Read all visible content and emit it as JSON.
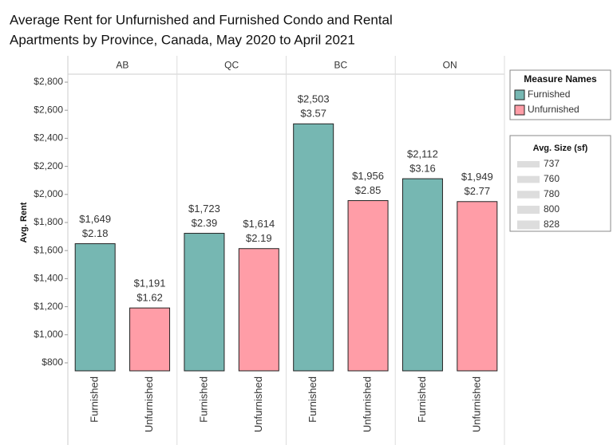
{
  "chart_data": {
    "type": "bar",
    "title": "Average Rent for Unfurnished and Furnished Condo and Rental",
    "subtitle": "Apartments by Province, Canada, May 2020 to April 2021",
    "y_label": "Avg. Rent",
    "categories": [
      "AB",
      "QC",
      "BC",
      "ON"
    ],
    "series": [
      {
        "name": "Furnished",
        "color": "#76b7b2",
        "values": [
          1649,
          1723,
          2503,
          2112
        ],
        "value_labels": [
          "$1,649",
          "$1,723",
          "$2,503",
          "$2,112"
        ],
        "per_sf_values": [
          2.18,
          2.39,
          3.57,
          3.16
        ],
        "per_sf_labels": [
          "$2.18",
          "$2.39",
          "$3.57",
          "$3.16"
        ]
      },
      {
        "name": "Unfurnished",
        "color": "#ff9da7",
        "values": [
          1191,
          1614,
          1956,
          1949
        ],
        "value_labels": [
          "$1,191",
          "$1,614",
          "$1,956",
          "$1,949"
        ],
        "per_sf_values": [
          1.62,
          2.19,
          2.85,
          2.77
        ],
        "per_sf_labels": [
          "$1.62",
          "$2.19",
          "$2.85",
          "$2.77"
        ]
      }
    ],
    "ylim": [
      743,
      2857
    ],
    "yticks": [
      {
        "value": 800,
        "label": "$800"
      },
      {
        "value": 1000,
        "label": "$1,000"
      },
      {
        "value": 1200,
        "label": "$1,200"
      },
      {
        "value": 1400,
        "label": "$1,400"
      },
      {
        "value": 1600,
        "label": "$1,600"
      },
      {
        "value": 1800,
        "label": "$1,800"
      },
      {
        "value": 2000,
        "label": "$2,000"
      },
      {
        "value": 2200,
        "label": "$2,200"
      },
      {
        "value": 2400,
        "label": "$2,400"
      },
      {
        "value": 2600,
        "label": "$2,600"
      },
      {
        "value": 2800,
        "label": "$2,800"
      }
    ],
    "legend_title": "Measure Names",
    "size_legend": {
      "title": "Avg. Size (sf)",
      "values": [
        737,
        760,
        780,
        800,
        828
      ]
    }
  }
}
